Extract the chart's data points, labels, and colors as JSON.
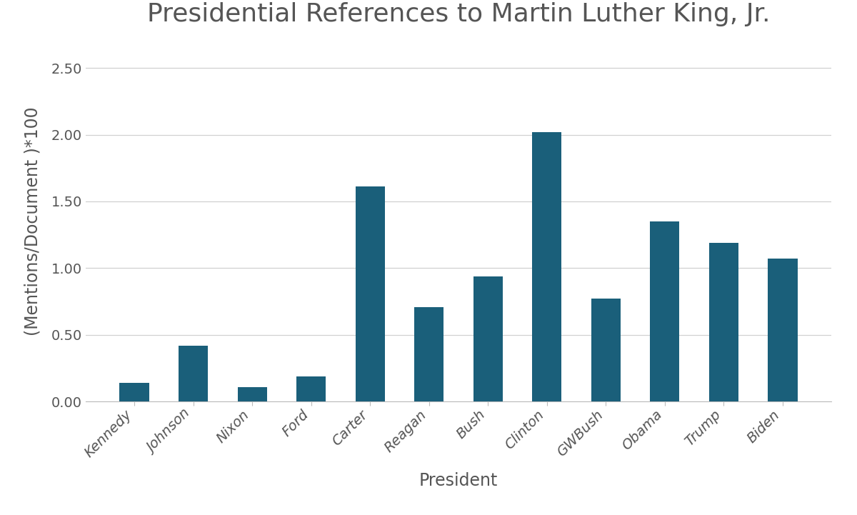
{
  "title": "Presidential References to Martin Luther King, Jr.",
  "xlabel": "President",
  "ylabel": "(Mentions/Document )*100",
  "categories": [
    "Kennedy",
    "Johnson",
    "Nixon",
    "Ford",
    "Carter",
    "Reagan",
    "Bush",
    "Clinton",
    "GWBush",
    "Obama",
    "Trump",
    "Biden"
  ],
  "values": [
    0.14,
    0.42,
    0.11,
    0.19,
    1.61,
    0.71,
    0.94,
    2.02,
    0.77,
    1.35,
    1.19,
    1.07
  ],
  "bar_color": "#1a5f7a",
  "background_color": "#ffffff",
  "ylim": [
    0,
    2.7
  ],
  "yticks": [
    0.0,
    0.5,
    1.0,
    1.5,
    2.0,
    2.5
  ],
  "ytick_labels": [
    "0.00",
    "0.50",
    "1.00",
    "1.50",
    "2.00",
    "2.50"
  ],
  "title_fontsize": 26,
  "axis_label_fontsize": 17,
  "tick_fontsize": 14,
  "grid_color": "#d0d0d0",
  "bar_width": 0.5
}
